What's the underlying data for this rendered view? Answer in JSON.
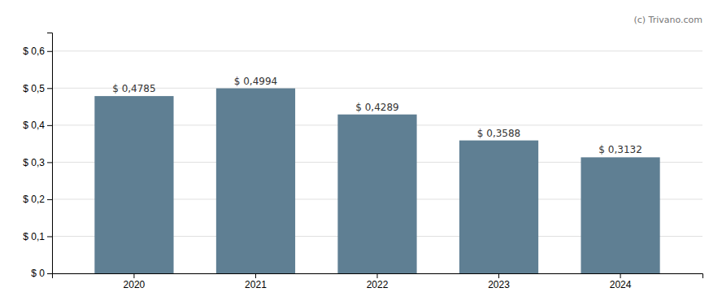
{
  "chart_data": {
    "type": "bar",
    "categories": [
      "2020",
      "2021",
      "2022",
      "2023",
      "2024"
    ],
    "values": [
      0.4785,
      0.4994,
      0.4289,
      0.3588,
      0.3132
    ],
    "value_labels": [
      "$ 0,4785",
      "$ 0,4994",
      "$ 0,4289",
      "$ 0,3588",
      "$ 0,3132"
    ],
    "data_labels": true,
    "color": "#5f7f93",
    "ylim": [
      0,
      0.65
    ],
    "yticks": [
      {
        "value": 0.0,
        "label": "$ 0"
      },
      {
        "value": 0.1,
        "label": "$ 0,1"
      },
      {
        "value": 0.2,
        "label": "$ 0,2"
      },
      {
        "value": 0.3,
        "label": "$ 0,3"
      },
      {
        "value": 0.4,
        "label": "$ 0,4"
      },
      {
        "value": 0.5,
        "label": "$ 0,5"
      },
      {
        "value": 0.6,
        "label": "$ 0,6"
      }
    ],
    "grid": true,
    "annotations": [
      "(c) Trivano.com"
    ]
  }
}
